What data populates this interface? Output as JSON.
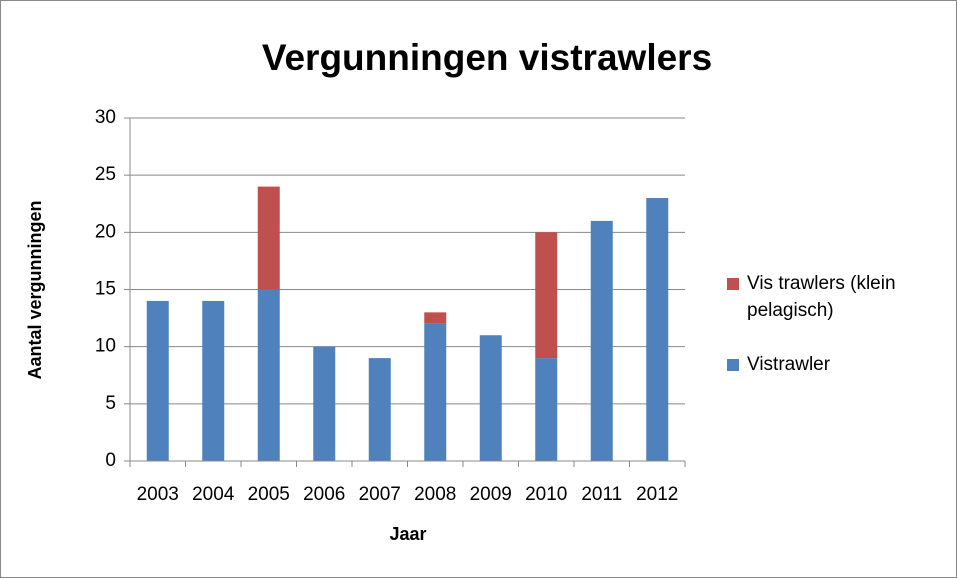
{
  "chart_data": {
    "type": "bar",
    "stacked": true,
    "title": "Vergunningen vistrawlers",
    "x_label": "Jaar",
    "y_label": "Aantal vergunningen",
    "categories": [
      "2003",
      "2004",
      "2005",
      "2006",
      "2007",
      "2008",
      "2009",
      "2010",
      "2011",
      "2012"
    ],
    "series": [
      {
        "name": "Vistrawler",
        "color": "#4f81bd",
        "values": [
          14,
          14,
          15,
          10,
          9,
          12,
          11,
          9,
          21,
          23
        ]
      },
      {
        "name": "Vis trawlers (klein pelagisch)",
        "color": "#c0504d",
        "values": [
          0,
          0,
          9,
          0,
          0,
          1,
          0,
          11,
          0,
          0
        ]
      }
    ],
    "ylim": [
      0,
      30
    ],
    "yticks": [
      0,
      5,
      10,
      15,
      20,
      25,
      30
    ],
    "grid": true,
    "legend": "right"
  }
}
